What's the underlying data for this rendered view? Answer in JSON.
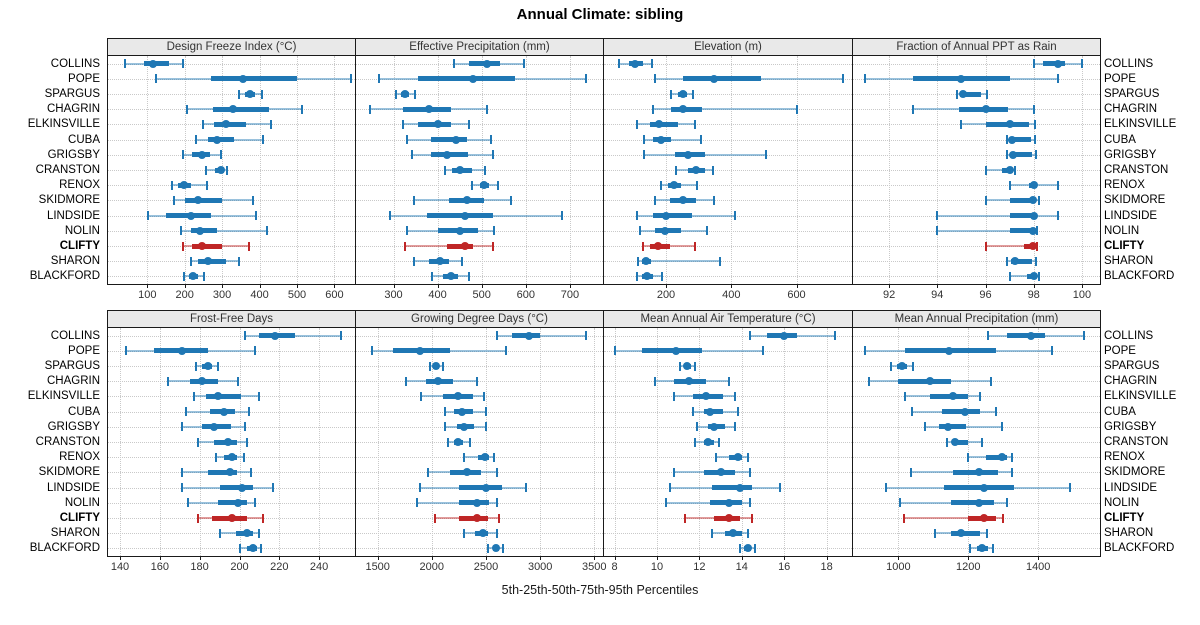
{
  "chart_data": {
    "type": "percentile-dotplot",
    "title": "Annual Climate: sibling",
    "xlabel": "5th-25th-50th-75th-95th Percentiles",
    "percentiles": [
      5,
      25,
      50,
      75,
      95
    ],
    "stations": [
      "COLLINS",
      "POPE",
      "SPARGUS",
      "CHAGRIN",
      "ELKINSVILLE",
      "CUBA",
      "GRIGSBY",
      "CRANSTON",
      "RENOX",
      "SKIDMORE",
      "LINDSIDE",
      "NOLIN",
      "CLIFTY",
      "SHARON",
      "BLACKFORD"
    ],
    "highlight_station": "CLIFTY",
    "panel_grid": {
      "rows": 2,
      "cols": 4
    },
    "legend_position": "none",
    "grid": "dotted",
    "colors": {
      "series": "#1f77b4",
      "series_light": "rgba(31,119,180,0.45)",
      "highlight": "#bf2626",
      "highlight_light": "rgba(191,38,38,0.45)",
      "gridline": "#c9c9c9",
      "panel_border": "#1a1a1a",
      "header_bg": "#e9e9e9",
      "text": "#333333"
    },
    "panels": [
      {
        "title": "Design Freeze Index (°C)",
        "xlim": [
          -5,
          655
        ],
        "ticks": [
          100,
          200,
          300,
          400,
          500,
          600
        ],
        "values": [
          [
            40,
            90,
            116,
            158,
            196
          ],
          [
            122,
            270,
            355,
            500,
            645
          ],
          [
            345,
            360,
            373,
            389,
            406
          ],
          [
            206,
            275,
            330,
            424,
            514
          ],
          [
            250,
            278,
            311,
            365,
            430
          ],
          [
            230,
            261,
            286,
            331,
            410
          ],
          [
            196,
            218,
            245,
            266,
            296
          ],
          [
            256,
            281,
            296,
            306,
            313
          ],
          [
            166,
            182,
            197,
            216,
            260
          ],
          [
            171,
            201,
            236,
            300,
            381
          ],
          [
            101,
            151,
            216,
            271,
            391
          ],
          [
            190,
            216,
            241,
            286,
            420
          ],
          [
            196,
            219,
            246,
            301,
            371
          ],
          [
            216,
            236,
            262,
            311,
            346
          ],
          [
            199,
            211,
            221,
            236,
            251
          ]
        ]
      },
      {
        "title": "Effective Precipitation (mm)",
        "xlim": [
          215,
          775
        ],
        "ticks": [
          300,
          400,
          500,
          600,
          700
        ],
        "values": [
          [
            436,
            470,
            511,
            541,
            596
          ],
          [
            266,
            356,
            481,
            576,
            736
          ],
          [
            306,
            316,
            326,
            336,
            348
          ],
          [
            246,
            321,
            381,
            431,
            511
          ],
          [
            321,
            356,
            401,
            431,
            471
          ],
          [
            331,
            386,
            441,
            466,
            521
          ],
          [
            341,
            386,
            421,
            468,
            526
          ],
          [
            416,
            432,
            451,
            478,
            508
          ],
          [
            478,
            495,
            506,
            516,
            536
          ],
          [
            346,
            426,
            466,
            506,
            566
          ],
          [
            291,
            376,
            463,
            526,
            681
          ],
          [
            331,
            401,
            451,
            491,
            527
          ],
          [
            326,
            421,
            461,
            481,
            526
          ],
          [
            346,
            381,
            406,
            426,
            456
          ],
          [
            388,
            413,
            431,
            446,
            471
          ]
        ]
      },
      {
        "title": "Elevation (m)",
        "xlim": [
          10,
          770
        ],
        "ticks": [
          200,
          400,
          600
        ],
        "values": [
          [
            56,
            86,
            106,
            131,
            156
          ],
          [
            166,
            251,
            346,
            491,
            741
          ],
          [
            216,
            236,
            251,
            266,
            283
          ],
          [
            161,
            216,
            251,
            311,
            601
          ],
          [
            111,
            151,
            178,
            236,
            289
          ],
          [
            131,
            161,
            183,
            216,
            306
          ],
          [
            131,
            226,
            266,
            319,
            506
          ],
          [
            231,
            266,
            291,
            319,
            343
          ],
          [
            186,
            206,
            223,
            246,
            296
          ],
          [
            166,
            211,
            253,
            291,
            346
          ],
          [
            111,
            161,
            201,
            281,
            411
          ],
          [
            121,
            166,
            198,
            246,
            326
          ],
          [
            129,
            151,
            176,
            211,
            289
          ],
          [
            114,
            127,
            138,
            153,
            366
          ],
          [
            111,
            126,
            141,
            161,
            189
          ]
        ]
      },
      {
        "title": "Fraction of Annual PPT as Rain",
        "xlim": [
          90.5,
          100.75
        ],
        "ticks": [
          92,
          94,
          96,
          98,
          100
        ],
        "values": [
          [
            98,
            98.4,
            99,
            99.3,
            100
          ],
          [
            91,
            93,
            95,
            97,
            99
          ],
          [
            94.8,
            94.95,
            95.05,
            95.8,
            96.05
          ],
          [
            93,
            94.9,
            96,
            96.95,
            98
          ],
          [
            95,
            96,
            97,
            97.8,
            98.05
          ],
          [
            96.9,
            97,
            97.1,
            97.9,
            98.05
          ],
          [
            96.9,
            97.05,
            97.15,
            97.95,
            98.1
          ],
          [
            96,
            96.7,
            97,
            97.1,
            97.2
          ],
          [
            97,
            97.8,
            98,
            98.15,
            99
          ],
          [
            96,
            97,
            97.95,
            98.05,
            98.2
          ],
          [
            94,
            97,
            98,
            98.1,
            99
          ],
          [
            94,
            97,
            97.95,
            98.05,
            98.15
          ],
          [
            96,
            97.6,
            97.95,
            98.05,
            98.15
          ],
          [
            96.9,
            97.05,
            97.2,
            97.95,
            98.1
          ],
          [
            97,
            97.7,
            98,
            98.1,
            98.2
          ]
        ]
      },
      {
        "title": "Frost-Free Days",
        "xlim": [
          134,
          258
        ],
        "ticks": [
          140,
          160,
          180,
          200,
          220,
          240
        ],
        "values": [
          [
            203,
            210,
            218,
            228,
            251
          ],
          [
            143,
            157,
            171,
            184,
            208
          ],
          [
            178,
            181,
            184,
            186,
            189
          ],
          [
            164,
            175,
            181,
            189,
            199
          ],
          [
            177,
            183,
            189,
            201,
            210
          ],
          [
            173,
            185,
            192,
            198,
            205
          ],
          [
            171,
            181,
            187,
            196,
            203
          ],
          [
            179,
            187,
            194,
            199,
            204
          ],
          [
            188,
            192,
            196,
            199,
            202
          ],
          [
            171,
            184,
            195,
            199,
            206
          ],
          [
            171,
            190,
            201,
            207,
            217
          ],
          [
            174,
            189,
            199,
            204,
            208
          ],
          [
            179,
            186,
            196,
            204,
            212
          ],
          [
            190,
            198,
            204,
            207,
            210
          ],
          [
            200,
            204,
            207,
            209,
            211
          ]
        ]
      },
      {
        "title": "Growing Degree Days (°C)",
        "xlim": [
          1300,
          3580
        ],
        "ticks": [
          1500,
          2000,
          2500,
          3000,
          3500
        ],
        "values": [
          [
            2600,
            2740,
            2900,
            3000,
            3420
          ],
          [
            1445,
            1640,
            1890,
            2165,
            2680
          ],
          [
            1980,
            2010,
            2040,
            2070,
            2105
          ],
          [
            1760,
            1950,
            2060,
            2200,
            2420
          ],
          [
            1900,
            2100,
            2240,
            2380,
            2480
          ],
          [
            2120,
            2200,
            2280,
            2380,
            2500
          ],
          [
            2120,
            2230,
            2300,
            2390,
            2500
          ],
          [
            2150,
            2200,
            2245,
            2290,
            2350
          ],
          [
            2300,
            2430,
            2490,
            2530,
            2575
          ],
          [
            1960,
            2170,
            2320,
            2450,
            2600
          ],
          [
            1890,
            2250,
            2500,
            2650,
            2870
          ],
          [
            1860,
            2250,
            2420,
            2530,
            2600
          ],
          [
            2030,
            2250,
            2420,
            2520,
            2620
          ],
          [
            2300,
            2400,
            2470,
            2520,
            2600
          ],
          [
            2520,
            2560,
            2590,
            2620,
            2660
          ]
        ]
      },
      {
        "title": "Mean Annual Air Temperature (°C)",
        "xlim": [
          7.5,
          19.2
        ],
        "ticks": [
          8,
          10,
          12,
          14,
          16,
          18
        ],
        "values": [
          [
            14.4,
            15.2,
            16.0,
            16.6,
            18.4
          ],
          [
            8.0,
            9.3,
            10.9,
            12.1,
            15.0
          ],
          [
            11.1,
            11.3,
            11.4,
            11.6,
            11.8
          ],
          [
            9.9,
            10.8,
            11.5,
            12.3,
            13.4
          ],
          [
            10.8,
            11.7,
            12.3,
            13.1,
            13.7
          ],
          [
            11.7,
            12.2,
            12.5,
            13.1,
            13.8
          ],
          [
            11.9,
            12.4,
            12.7,
            13.2,
            13.7
          ],
          [
            11.8,
            12.2,
            12.4,
            12.7,
            12.9
          ],
          [
            12.8,
            13.4,
            13.8,
            14.0,
            14.3
          ],
          [
            10.8,
            12.2,
            13.0,
            13.7,
            14.4
          ],
          [
            10.6,
            12.6,
            13.9,
            14.5,
            15.8
          ],
          [
            10.4,
            12.5,
            13.4,
            14.0,
            14.4
          ],
          [
            11.3,
            12.7,
            13.4,
            13.9,
            14.5
          ],
          [
            12.6,
            13.2,
            13.6,
            14.0,
            14.3
          ],
          [
            13.9,
            14.1,
            14.3,
            14.45,
            14.6
          ]
        ]
      },
      {
        "title": "Mean Annual Precipitation (mm)",
        "xlim": [
          870,
          1577
        ],
        "ticks": [
          1000,
          1200,
          1400
        ],
        "values": [
          [
            1255,
            1310,
            1380,
            1420,
            1530
          ],
          [
            905,
            1020,
            1145,
            1280,
            1440
          ],
          [
            980,
            995,
            1010,
            1025,
            1042
          ],
          [
            915,
            1000,
            1090,
            1150,
            1265
          ],
          [
            1020,
            1090,
            1155,
            1200,
            1232
          ],
          [
            1040,
            1125,
            1190,
            1235,
            1278
          ],
          [
            1075,
            1115,
            1142,
            1195,
            1295
          ],
          [
            1140,
            1152,
            1162,
            1200,
            1240
          ],
          [
            1200,
            1250,
            1295,
            1312,
            1325
          ],
          [
            1035,
            1155,
            1230,
            1285,
            1325
          ],
          [
            965,
            1130,
            1245,
            1330,
            1490
          ],
          [
            1005,
            1150,
            1230,
            1275,
            1310
          ],
          [
            1015,
            1200,
            1245,
            1280,
            1298
          ],
          [
            1105,
            1150,
            1180,
            1235,
            1252
          ],
          [
            1205,
            1225,
            1240,
            1255,
            1270
          ]
        ]
      }
    ]
  }
}
